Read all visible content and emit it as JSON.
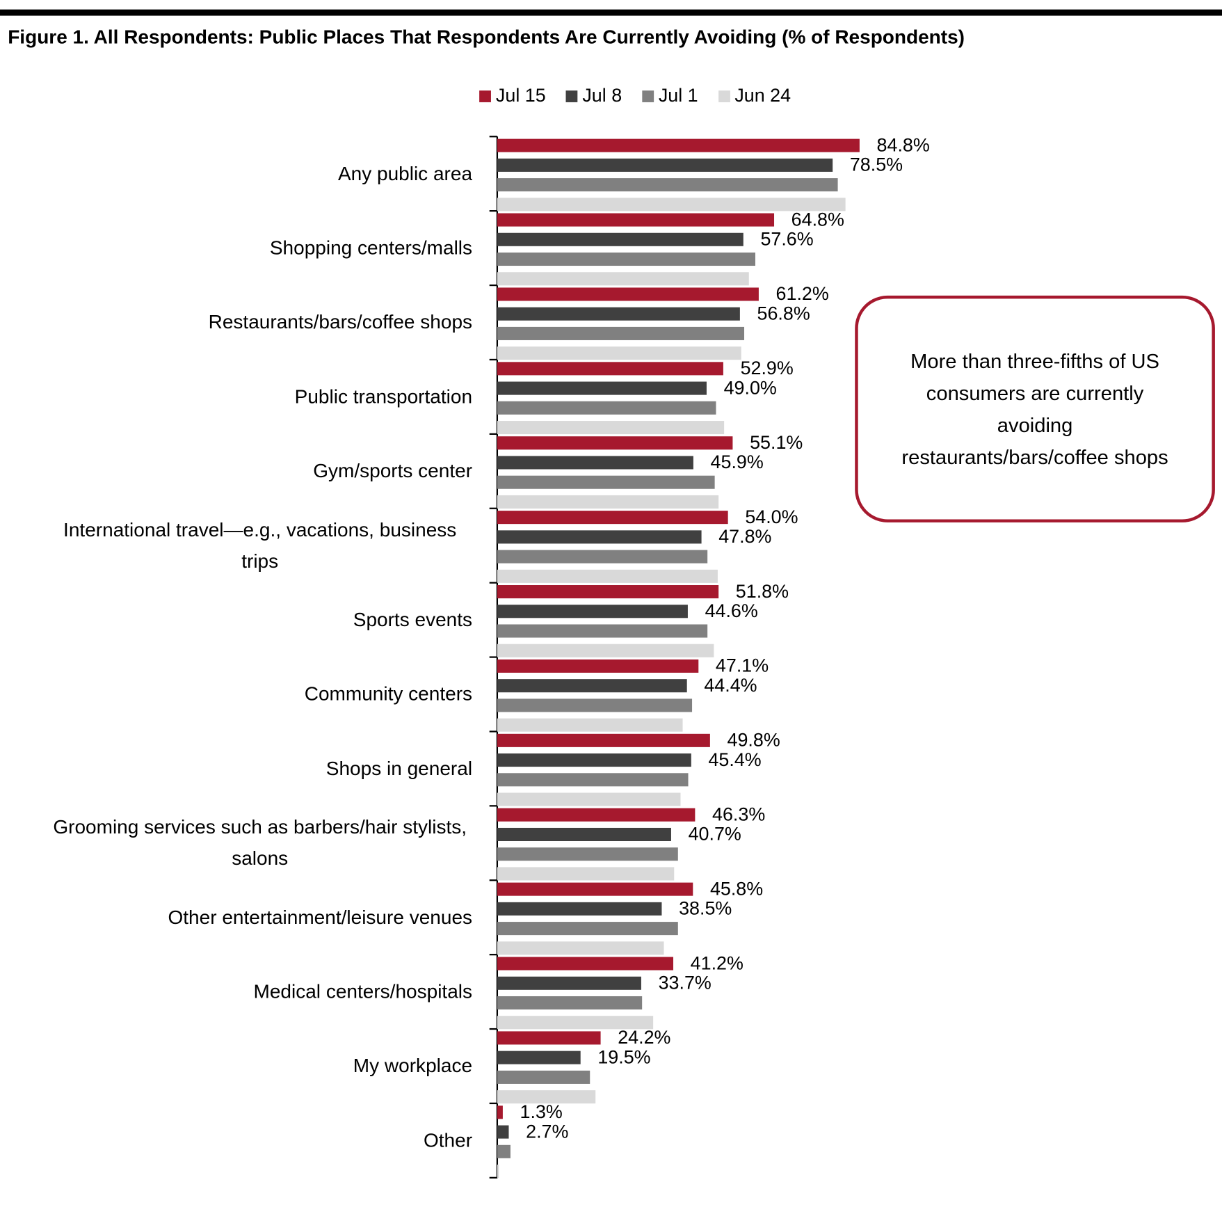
{
  "chart_data": {
    "type": "bar",
    "orientation": "horizontal",
    "title": "Figure 1. All Respondents: Public Places That Respondents Are Currently Avoiding (% of Respondents)",
    "categories": [
      "Any public area",
      "Shopping centers/malls",
      "Restaurants/bars/coffee shops",
      "Public transportation",
      "Gym/sports center",
      "International travel—e.g., vacations, business trips",
      "Sports events",
      "Community centers",
      "Shops in general",
      "Grooming services such as barbers/hair stylists, salons",
      "Other entertainment/leisure venues",
      "Medical centers/hospitals",
      "My workplace",
      "Other"
    ],
    "series": [
      {
        "name": "Jul 15",
        "color": "#a6192e",
        "values": [
          84.8,
          64.8,
          61.2,
          52.9,
          55.1,
          54.0,
          51.8,
          47.1,
          49.8,
          46.3,
          45.8,
          41.2,
          24.2,
          1.3
        ],
        "value_labels": [
          "84.8%",
          "64.8%",
          "61.2%",
          "52.9%",
          "55.1%",
          "54.0%",
          "51.8%",
          "47.1%",
          "49.8%",
          "46.3%",
          "45.8%",
          "41.2%",
          "24.2%",
          "1.3%"
        ]
      },
      {
        "name": "Jul 8",
        "color": "#404040",
        "values": [
          78.5,
          57.6,
          56.8,
          49.0,
          45.9,
          47.8,
          44.6,
          44.4,
          45.4,
          40.7,
          38.5,
          33.7,
          19.5,
          2.7
        ],
        "value_labels": [
          "78.5%",
          "57.6%",
          "56.8%",
          "49.0%",
          "45.9%",
          "47.8%",
          "44.6%",
          "44.4%",
          "45.4%",
          "40.7%",
          "38.5%",
          "33.7%",
          "19.5%",
          "2.7%"
        ]
      },
      {
        "name": "Jul 1",
        "color": "#808080",
        "values": [
          79.7,
          60.4,
          57.8,
          51.2,
          50.9,
          49.2,
          49.2,
          45.6,
          44.7,
          42.3,
          42.3,
          33.9,
          21.7,
          3.1
        ]
      },
      {
        "name": "Jun 24",
        "color": "#d9d9d9",
        "values": [
          81.5,
          58.9,
          57.1,
          53.1,
          51.8,
          51.6,
          50.7,
          43.4,
          42.9,
          41.4,
          39.0,
          36.5,
          23.0,
          0.4
        ]
      }
    ],
    "annotation": "More than three-fifths of US consumers are currently avoiding restaurants/bars/coffee shops"
  }
}
